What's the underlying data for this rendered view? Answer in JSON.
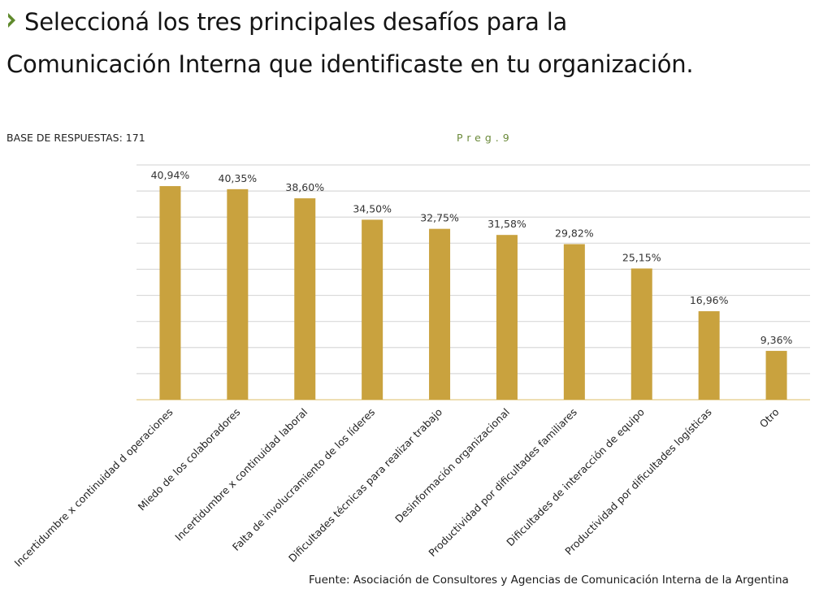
{
  "header": {
    "title_line1": "Seleccioná los tres principales desafíos para la",
    "title_line2": "Comunicación Interna que identificaste en tu organización.",
    "bullet_icon": "chevron-right-icon",
    "bullet_color": "#5f8a2c"
  },
  "base_label": "BASE DE RESPUESTAS: 171",
  "question_tag": "Preg.9",
  "source": "Fuente: Asociación de Consultores y Agencias de Comunicación Interna de la Argentina",
  "chart_data": {
    "type": "bar",
    "title": "Seleccioná los tres principales desafíos para la Comunicación Interna que identificaste en tu organización.",
    "xlabel": "",
    "ylabel": "",
    "ylim": [
      0,
      45
    ],
    "grid_step": 5,
    "grid": true,
    "legend": "none",
    "bar_color": "#c9a23e",
    "categories": [
      "Incertidumbre x continuidad d operaciones",
      "Miedo de los colaboradores",
      "Incertidumbre x continuidad laboral",
      "Falta de involucramiento de los líderes",
      "Dificultades técnicas para realizar trabajo",
      "Desinformación organizacional",
      "Productividad por dificultades familiares",
      "Dificultades de interacción de equipo",
      "Productividad por dificultades logísticas",
      "Otro"
    ],
    "values": [
      40.94,
      40.35,
      38.6,
      34.5,
      32.75,
      31.58,
      29.82,
      25.15,
      16.96,
      9.36
    ],
    "value_labels": [
      "40,94%",
      "40,35%",
      "38,60%",
      "34,50%",
      "32,75%",
      "31,58%",
      "29,82%",
      "25,15%",
      "16,96%",
      "9,36%"
    ]
  }
}
